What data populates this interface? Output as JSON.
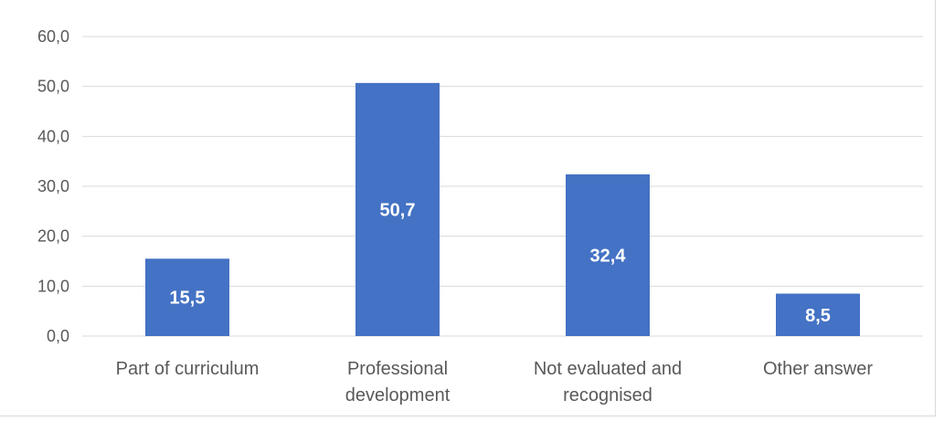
{
  "chart_data": {
    "type": "bar",
    "title": "",
    "xlabel": "",
    "ylabel": "",
    "categories": [
      [
        "Part of curriculum"
      ],
      [
        "Professional",
        "development"
      ],
      [
        "Not evaluated and",
        "recognised"
      ],
      [
        "Other answer"
      ]
    ],
    "values": [
      15.5,
      50.7,
      32.4,
      8.5
    ],
    "data_labels": [
      "15,5",
      "50,7",
      "32,4",
      "8,5"
    ],
    "ylim": [
      0,
      60
    ],
    "y_ticks": [
      0,
      10,
      20,
      30,
      40,
      50,
      60
    ],
    "y_tick_labels": [
      "0,0",
      "10,0",
      "20,0",
      "30,0",
      "40,0",
      "50,0",
      "60,0"
    ],
    "grid": true,
    "legend": "none",
    "colors": {
      "bar": "#4472c4",
      "grid": "#d9d9d9",
      "text": "#595959",
      "label": "#ffffff"
    }
  }
}
